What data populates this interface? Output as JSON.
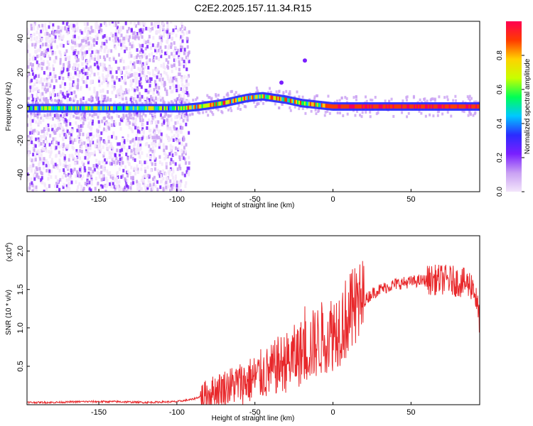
{
  "chart_data": [
    {
      "type": "heatmap",
      "title": "C2E2.2025.157.11.34.R15",
      "xlabel": "Height of straight line (km)",
      "ylabel": "Frequency (Hz)",
      "xlim": [
        -196,
        94
      ],
      "ylim": [
        -50,
        50
      ],
      "x_ticks": [
        -150,
        -100,
        -50,
        0,
        50
      ],
      "x_tick_labels": [
        "-150",
        "-100",
        "-50",
        "0",
        "50"
      ],
      "y_ticks": [
        -40,
        -20,
        0,
        20,
        40
      ],
      "y_tick_labels": [
        "-40",
        "-20",
        "0",
        "20",
        "40"
      ],
      "colorbar": {
        "label": "Normalized spectral amplitude",
        "range": [
          0,
          1
        ],
        "ticks": [
          0.0,
          0.2,
          0.4,
          0.6,
          0.8
        ],
        "tick_labels": [
          "0.0",
          "0.2",
          "0.4",
          "0.6",
          "0.8"
        ],
        "colormap": [
          "#f3e6fb",
          "#c9a0f3",
          "#7a1fff",
          "#2b2cff",
          "#00c8ff",
          "#00ff55",
          "#c8ff00",
          "#ffd200",
          "#ff3b00",
          "#ff0050"
        ]
      },
      "central_line": [
        [
          -196,
          -1
        ],
        [
          -160,
          -1
        ],
        [
          -120,
          -1
        ],
        [
          -96,
          -1
        ],
        [
          -85,
          0
        ],
        [
          -70,
          2
        ],
        [
          -55,
          5
        ],
        [
          -45,
          6
        ],
        [
          -30,
          4
        ],
        [
          -20,
          2
        ],
        [
          -10,
          1
        ],
        [
          0,
          0
        ],
        [
          50,
          0
        ],
        [
          94,
          0
        ]
      ],
      "noise_x_range": [
        -196,
        -92
      ],
      "grid": false
    },
    {
      "type": "line",
      "xlabel": "Height of straight line (km)",
      "ylabel": "SNR (10 * v/v)",
      "y_scale_note": "(x10",
      "y_scale_exponent": "4",
      "xlim": [
        -196,
        94
      ],
      "ylim": [
        0,
        2.2
      ],
      "x_ticks": [
        -150,
        -100,
        -50,
        0,
        50
      ],
      "x_tick_labels": [
        "-150",
        "-100",
        "-50",
        "0",
        "50"
      ],
      "y_ticks": [
        0.5,
        1.0,
        1.5,
        2.0
      ],
      "y_tick_labels": [
        "0.5",
        "1.0",
        "1.5",
        "2.0"
      ],
      "series": [
        {
          "color": "#e8282b",
          "x": [
            -196,
            -180,
            -160,
            -140,
            -120,
            -100,
            -90,
            -80,
            -75,
            -70,
            -65,
            -60,
            -55,
            -50,
            -45,
            -40,
            -35,
            -30,
            -25,
            -20,
            -15,
            -10,
            -5,
            0,
            5,
            10,
            15,
            20,
            25,
            30,
            40,
            50,
            60,
            70,
            75,
            80,
            85,
            90,
            94
          ],
          "values": [
            0.03,
            0.03,
            0.04,
            0.04,
            0.03,
            0.04,
            0.07,
            0.14,
            0.19,
            0.22,
            0.25,
            0.28,
            0.3,
            0.35,
            0.4,
            0.42,
            0.52,
            0.55,
            0.62,
            0.68,
            0.75,
            0.82,
            0.9,
            0.95,
            1.05,
            1.15,
            1.25,
            1.35,
            1.45,
            1.5,
            1.57,
            1.6,
            1.62,
            1.63,
            1.62,
            1.6,
            1.58,
            1.55,
            1.1
          ]
        }
      ],
      "grid": false
    }
  ]
}
